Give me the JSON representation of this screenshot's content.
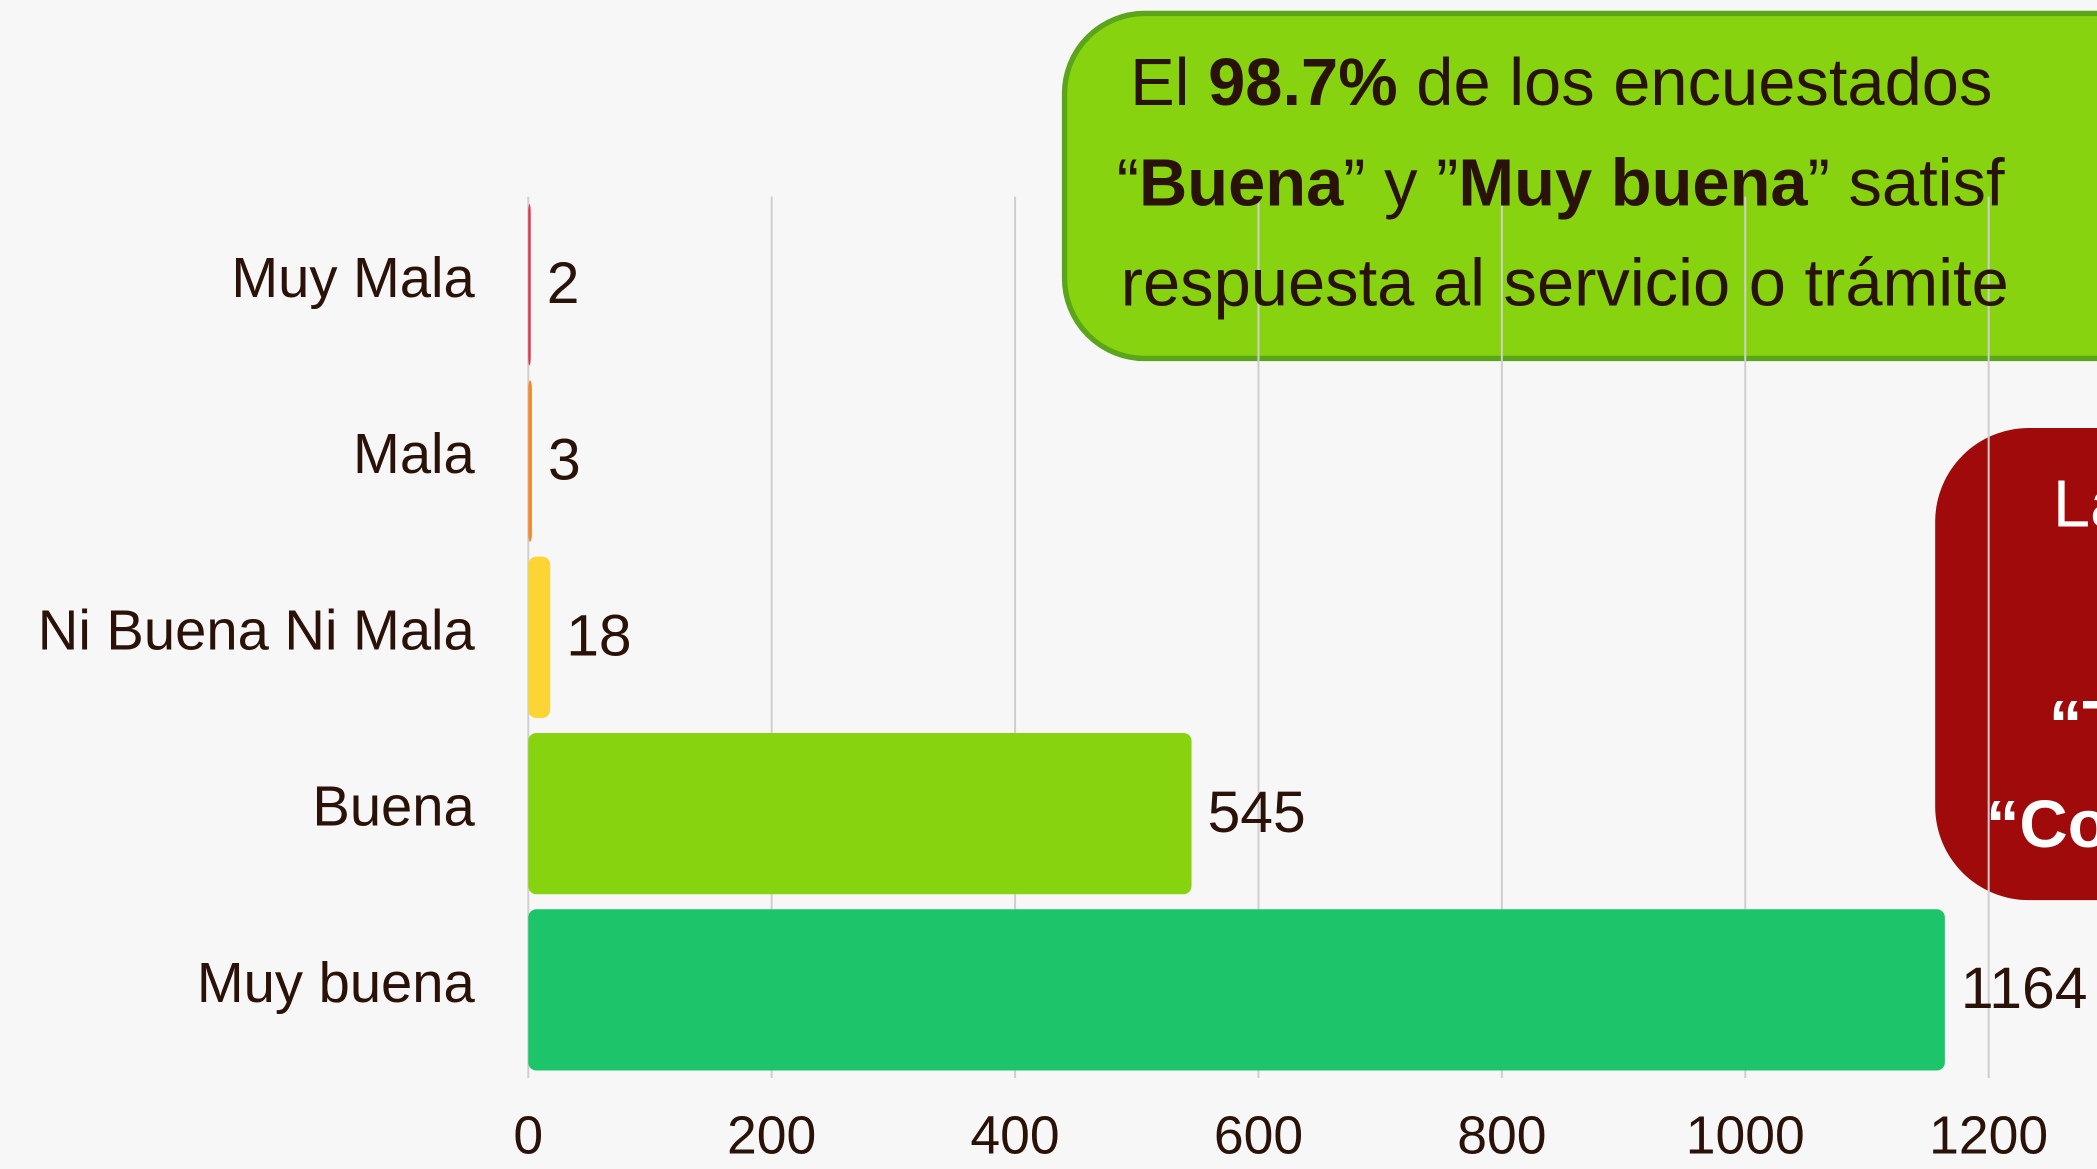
{
  "chart_data": {
    "type": "bar",
    "orientation": "horizontal",
    "categories": [
      "Muy Mala",
      "Mala",
      "Ni Buena Ni Mala",
      "Buena",
      "Muy buena"
    ],
    "values": [
      2,
      3,
      18,
      545,
      1164
    ],
    "colors": [
      "#e0344a",
      "#f08a2c",
      "#fcd535",
      "#88d30f",
      "#1cc56a"
    ],
    "xlim": [
      0,
      1200
    ],
    "xticks": [
      0,
      200,
      400,
      600,
      800,
      1000,
      1200
    ],
    "grid": true,
    "annotations": [
      {
        "lines": [
          [
            {
              "text": "El ",
              "bold": false
            },
            {
              "text": "98.7%",
              "bold": true
            },
            {
              "text": " de los encuestados",
              "bold": false
            }
          ],
          [
            {
              "text": "“",
              "bold": false
            },
            {
              "text": "Buena",
              "bold": true
            },
            {
              "text": "” y ”",
              "bold": false
            },
            {
              "text": "Muy buena",
              "bold": true
            },
            {
              "text": "” satisf",
              "bold": false
            }
          ],
          [
            {
              "text": "respuesta al servicio o trámite",
              "bold": false
            }
          ]
        ]
      },
      {
        "lines": [
          [
            {
              "text": "La",
              "bold": false
            }
          ],
          [
            {
              "text": "“T",
              "bold": true
            }
          ],
          [
            {
              "text": "“Co",
              "bold": true
            }
          ]
        ]
      }
    ]
  }
}
